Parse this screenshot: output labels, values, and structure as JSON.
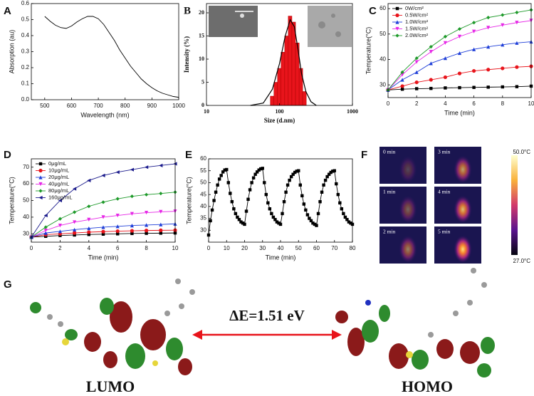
{
  "chart_data": [
    {
      "panel": "A",
      "type": "line",
      "xlabel": "Wavelength (nm)",
      "ylabel": "Absorption (au)",
      "x": [
        500,
        520,
        540,
        560,
        580,
        600,
        620,
        640,
        660,
        680,
        700,
        720,
        740,
        760,
        780,
        800,
        820,
        840,
        860,
        880,
        900,
        920,
        940,
        960,
        980,
        1000
      ],
      "series": [
        {
          "color": "#000000",
          "values": [
            0.52,
            0.49,
            0.465,
            0.45,
            0.445,
            0.46,
            0.485,
            0.505,
            0.52,
            0.52,
            0.505,
            0.47,
            0.42,
            0.37,
            0.31,
            0.26,
            0.21,
            0.17,
            0.13,
            0.1,
            0.075,
            0.055,
            0.04,
            0.03,
            0.02,
            0.015
          ]
        }
      ],
      "xlim": [
        450,
        1000
      ],
      "xticks": [
        500,
        600,
        700,
        800,
        900,
        1000
      ],
      "ylim": [
        0,
        0.6
      ],
      "yticks": [
        {
          "value": 0,
          "label": "0.0"
        },
        0.1,
        0.2,
        0.3,
        0.4,
        0.5,
        0.6
      ]
    },
    {
      "panel": "B",
      "type": "histogram",
      "xlabel": "Size (d.nm)",
      "ylabel": "Intensity (%)",
      "xscale": "log",
      "bins": [
        75,
        84,
        94,
        105,
        118,
        132,
        148,
        166,
        186,
        208,
        233
      ],
      "values": [
        2,
        5,
        8,
        11.5,
        15,
        19.3,
        18,
        13.5,
        8,
        3
      ],
      "color": "#e8141b",
      "fit": {
        "color": "#000000",
        "x": [
          40,
          60,
          80,
          100,
          120,
          140,
          160,
          180,
          200,
          230,
          270,
          320
        ],
        "values": [
          0,
          0.5,
          3.5,
          9,
          15,
          18.5,
          17,
          12,
          7,
          3,
          0.8,
          0
        ]
      },
      "xlim": [
        10,
        1000
      ],
      "xticks": [
        10,
        100,
        1000
      ],
      "ylim": [
        0,
        22
      ],
      "yticks": [
        0,
        5,
        10,
        15,
        20
      ]
    },
    {
      "panel": "C",
      "type": "line",
      "xlabel": "Time (min)",
      "ylabel": "Temperature(°C)",
      "legend": "upper left",
      "x": [
        0,
        1,
        2,
        3,
        4,
        5,
        6,
        7,
        8,
        9,
        10
      ],
      "series": [
        {
          "name": "0W/cm²",
          "color": "#000000",
          "marker": "s",
          "values": [
            28,
            28.3,
            28.5,
            28.6,
            28.8,
            28.9,
            29,
            29.1,
            29.2,
            29.3,
            29.5
          ]
        },
        {
          "name": "0.5W/cm²",
          "color": "#e8141b",
          "marker": "o",
          "values": [
            28,
            29.5,
            31,
            32,
            33,
            34.5,
            35.5,
            36,
            36.5,
            37,
            37.3
          ]
        },
        {
          "name": "1.0W/cm²",
          "color": "#1f3fd8",
          "marker": "^",
          "values": [
            28,
            32,
            35,
            38.5,
            40.5,
            42.5,
            44,
            45,
            45.8,
            46.5,
            47
          ]
        },
        {
          "name": "1.5W/cm²",
          "color": "#e626e6",
          "marker": "v",
          "values": [
            28,
            34,
            39,
            43,
            46.5,
            49,
            51,
            52.5,
            53.5,
            54.5,
            55.3
          ]
        },
        {
          "name": "2.0W/cm²",
          "color": "#1e9a2a",
          "marker": "D",
          "values": [
            28,
            35,
            40.5,
            45,
            49,
            52,
            54.5,
            56.5,
            57.5,
            58.5,
            59.5
          ]
        }
      ],
      "xlim": [
        0,
        10
      ],
      "xticks": [
        0,
        2,
        4,
        6,
        8,
        10
      ],
      "ylim": [
        25,
        62
      ],
      "yticks": [
        30,
        40,
        50,
        60
      ]
    },
    {
      "panel": "D",
      "type": "line",
      "xlabel": "Time (min)",
      "ylabel": "Temperature(°C)",
      "legend": "upper left",
      "x": [
        0,
        1,
        2,
        3,
        4,
        5,
        6,
        7,
        8,
        9,
        10
      ],
      "series": [
        {
          "name": "0μg/mL",
          "color": "#000000",
          "marker": "s",
          "values": [
            28,
            28.5,
            29,
            29.3,
            29.6,
            29.8,
            30,
            30.2,
            30.3,
            30.4,
            30.5
          ]
        },
        {
          "name": "10μg/mL",
          "color": "#e8141b",
          "marker": "o",
          "values": [
            28,
            29.5,
            30,
            30.5,
            31,
            31.3,
            31.6,
            31.8,
            32,
            32.1,
            32.2
          ]
        },
        {
          "name": "20μg/mL",
          "color": "#1f3fd8",
          "marker": "^",
          "values": [
            28,
            30.5,
            31.5,
            32.5,
            33.3,
            34,
            34.5,
            35,
            35.3,
            35.6,
            36
          ]
        },
        {
          "name": "40μg/mL",
          "color": "#e626e6",
          "marker": "v",
          "values": [
            28,
            32,
            35,
            37,
            38.5,
            40,
            41,
            42,
            42.7,
            43.2,
            43.5
          ]
        },
        {
          "name": "80μg/mL",
          "color": "#1e9a2a",
          "marker": "D",
          "values": [
            28,
            34,
            39,
            43,
            46.5,
            49,
            51,
            52.5,
            53.5,
            54.2,
            55
          ]
        },
        {
          "name": "160μg/mL",
          "color": "#1b1b8c",
          "marker": "<",
          "values": [
            28,
            41,
            50,
            57,
            62,
            65,
            67,
            68.5,
            70,
            71,
            72
          ]
        }
      ],
      "xlim": [
        0,
        10
      ],
      "xticks": [
        0,
        2,
        4,
        6,
        8,
        10
      ],
      "ylim": [
        25,
        75
      ],
      "yticks": [
        30,
        40,
        50,
        60,
        70
      ]
    },
    {
      "panel": "E",
      "type": "line",
      "xlabel": "Time (min)",
      "ylabel": "Temperature(°C)",
      "x": [
        0,
        1,
        2,
        3,
        4,
        5,
        6,
        7,
        8,
        9,
        10,
        11,
        12,
        13,
        14,
        15,
        16,
        17,
        18,
        19,
        20,
        21,
        22,
        23,
        24,
        25,
        26,
        27,
        28,
        29,
        30,
        31,
        32,
        33,
        34,
        35,
        36,
        37,
        38,
        39,
        40,
        41,
        42,
        43,
        44,
        45,
        46,
        47,
        48,
        49,
        50,
        51,
        52,
        53,
        54,
        55,
        56,
        57,
        58,
        59,
        60,
        61,
        62,
        63,
        64,
        65,
        66,
        67,
        68,
        69,
        70,
        71,
        72,
        73,
        74,
        75,
        76,
        77,
        78,
        79,
        80
      ],
      "series": [
        {
          "color": "#000000",
          "marker": "s",
          "values": [
            28,
            34,
            38.5,
            42.5,
            46,
            49,
            51.5,
            53,
            54.5,
            55.3,
            55.5,
            50,
            45.5,
            42,
            39,
            37,
            35.5,
            34.5,
            33.5,
            33,
            32.5,
            38,
            43,
            47,
            50,
            52,
            53.5,
            54.5,
            55.3,
            55.8,
            56,
            50,
            45,
            41.5,
            39,
            37,
            35.5,
            34.5,
            33.5,
            33,
            32.5,
            37,
            42,
            46,
            49,
            51,
            52.5,
            53.5,
            54.3,
            54.8,
            55,
            49,
            44.5,
            41,
            38.5,
            36.5,
            35,
            34,
            33,
            32.5,
            32,
            37,
            42,
            46,
            49,
            51,
            52.5,
            53.5,
            54.3,
            54.8,
            55,
            49.5,
            45,
            41.5,
            39,
            37,
            35.5,
            34.5,
            33.5,
            33,
            32.5
          ]
        }
      ],
      "xlim": [
        0,
        80
      ],
      "xticks": [
        0,
        10,
        20,
        30,
        40,
        50,
        60,
        70,
        80
      ],
      "ylim": [
        25,
        60
      ],
      "yticks": [
        30,
        35,
        40,
        45,
        50,
        55,
        60
      ]
    }
  ],
  "thermal": {
    "panel": "F",
    "frames": [
      "0 min",
      "1 min",
      "2 min",
      "3 min",
      "4 min",
      "5 min"
    ],
    "colorbar": {
      "max": {
        "value": 50.0,
        "label": "50.0°C"
      },
      "min": {
        "value": 27.0,
        "label": "27.0°C"
      }
    }
  },
  "orbitals": {
    "panel": "G",
    "gap": "ΔE=1.51 eV",
    "left": "LUMO",
    "right": "HOMO"
  }
}
